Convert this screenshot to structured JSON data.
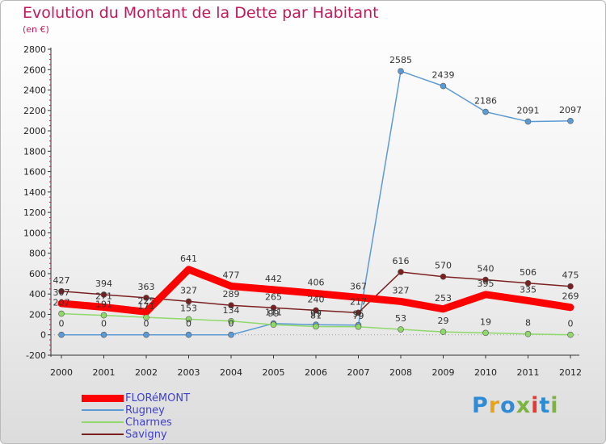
{
  "title": "Evolution du Montant de la Dette par Habitant",
  "subtitle": "(en €)",
  "brand": {
    "letters": [
      "P",
      "r",
      "o",
      "x",
      "i",
      "t",
      "i"
    ],
    "colors": [
      "#2e8bd6",
      "#e8a317",
      "#2e8bd6",
      "#7cb342",
      "#e53935",
      "#2e8bd6",
      "#7cb342"
    ]
  },
  "chart_data": {
    "type": "line",
    "title": "Evolution du Montant de la Dette par Habitant",
    "ylabel": "(en €)",
    "xlabel": "",
    "x": [
      "2000",
      "2001",
      "2002",
      "2003",
      "2004",
      "2005",
      "2006",
      "2007",
      "2008",
      "2009",
      "2010",
      "2011",
      "2012"
    ],
    "ylim": [
      -200,
      2800
    ],
    "yticks": [
      "-200",
      "0",
      "200",
      "400",
      "600",
      "800",
      "1000",
      "1200",
      "1400",
      "1600",
      "1800",
      "2000",
      "2200",
      "2400",
      "2600",
      "2800"
    ],
    "grid": false,
    "legend": "bottom-left",
    "series": [
      {
        "name": "FLORéMONT",
        "color": "#ff0000",
        "values": [
          307,
          271,
          225,
          641,
          477,
          442,
          406,
          367,
          327,
          253,
          395,
          335,
          269
        ],
        "labels": [
          "307",
          "271",
          "225",
          "641",
          "477",
          "442",
          "406",
          "367",
          "327",
          "253",
          "395",
          "335",
          "269"
        ]
      },
      {
        "name": "Rugney",
        "color": "#5b9bd5",
        "values": [
          0,
          0,
          0,
          0,
          0,
          111,
          99,
          95,
          2585,
          2439,
          2186,
          2091,
          2097
        ],
        "labels": [
          "0",
          "0",
          "0",
          "0",
          "0",
          "111",
          "99",
          "95",
          "2585",
          "2439",
          "2186",
          "2091",
          "2097"
        ]
      },
      {
        "name": "Charmes",
        "color": "#8fd96a",
        "values": [
          207,
          191,
          171,
          153,
          134,
          99,
          81,
          79,
          53,
          29,
          19,
          8,
          0
        ],
        "labels": [
          "207",
          "191",
          "171",
          "153",
          "134",
          "99",
          "81",
          "79",
          "53",
          "29",
          "19",
          "8",
          "0"
        ]
      },
      {
        "name": "Savigny",
        "color": "#7b2020",
        "values": [
          427,
          394,
          363,
          327,
          289,
          265,
          240,
          217,
          616,
          570,
          540,
          506,
          475
        ],
        "labels": [
          "427",
          "394",
          "363",
          "327",
          "289",
          "265",
          "240",
          "217",
          "616",
          "570",
          "540",
          "506",
          "475"
        ]
      }
    ]
  }
}
